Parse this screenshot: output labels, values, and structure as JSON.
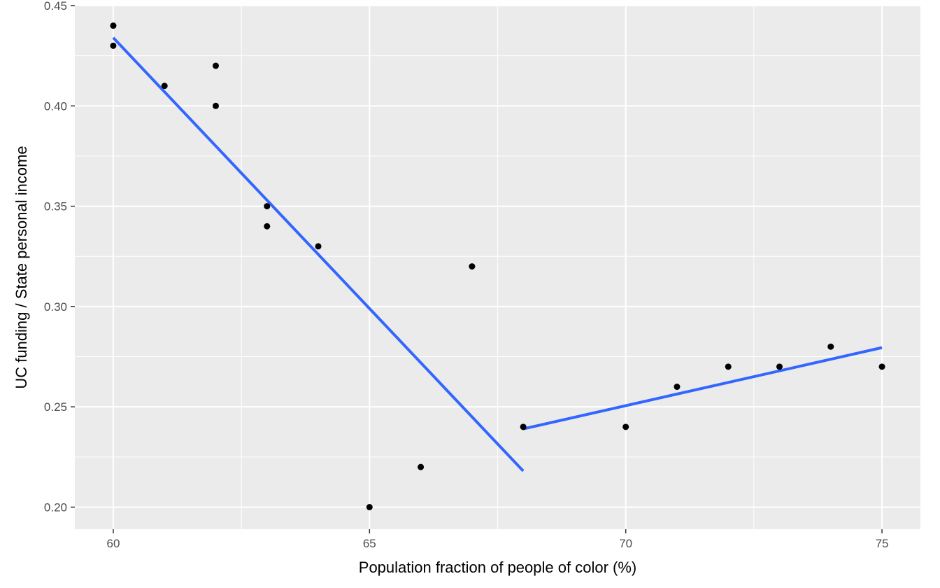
{
  "chart_data": {
    "type": "scatter",
    "title": "",
    "xlabel": "Population fraction of people of color (%)",
    "ylabel": "UC funding / State  personal income",
    "xlim": [
      59.25,
      75.75
    ],
    "ylim": [
      0.189,
      0.45
    ],
    "x_ticks": [
      60,
      65,
      70,
      75
    ],
    "x_tick_labels": [
      "60",
      "65",
      "70",
      "75"
    ],
    "y_ticks": [
      0.2,
      0.25,
      0.3,
      0.35,
      0.4,
      0.45
    ],
    "y_tick_labels": [
      "0.20",
      "0.25",
      "0.30",
      "0.35",
      "0.40",
      "0.45"
    ],
    "grid": true,
    "points": [
      {
        "x": 60,
        "y": 0.44
      },
      {
        "x": 60,
        "y": 0.43
      },
      {
        "x": 61,
        "y": 0.41
      },
      {
        "x": 62,
        "y": 0.42
      },
      {
        "x": 62,
        "y": 0.4
      },
      {
        "x": 63,
        "y": 0.35
      },
      {
        "x": 63,
        "y": 0.34
      },
      {
        "x": 64,
        "y": 0.33
      },
      {
        "x": 65,
        "y": 0.2
      },
      {
        "x": 66,
        "y": 0.22
      },
      {
        "x": 67,
        "y": 0.32
      },
      {
        "x": 68,
        "y": 0.24
      },
      {
        "x": 70,
        "y": 0.24
      },
      {
        "x": 71,
        "y": 0.26
      },
      {
        "x": 72,
        "y": 0.27
      },
      {
        "x": 73,
        "y": 0.27
      },
      {
        "x": 74,
        "y": 0.28
      },
      {
        "x": 75,
        "y": 0.27
      }
    ],
    "fit_lines": [
      {
        "x": [
          60,
          68
        ],
        "y": [
          0.434,
          0.218
        ]
      },
      {
        "x": [
          68,
          75
        ],
        "y": [
          0.239,
          0.2795
        ]
      }
    ],
    "colors": {
      "panel_background": "#ebebeb",
      "grid": "#ffffff",
      "points": "#000000",
      "fit_line": "#3366ff"
    }
  }
}
